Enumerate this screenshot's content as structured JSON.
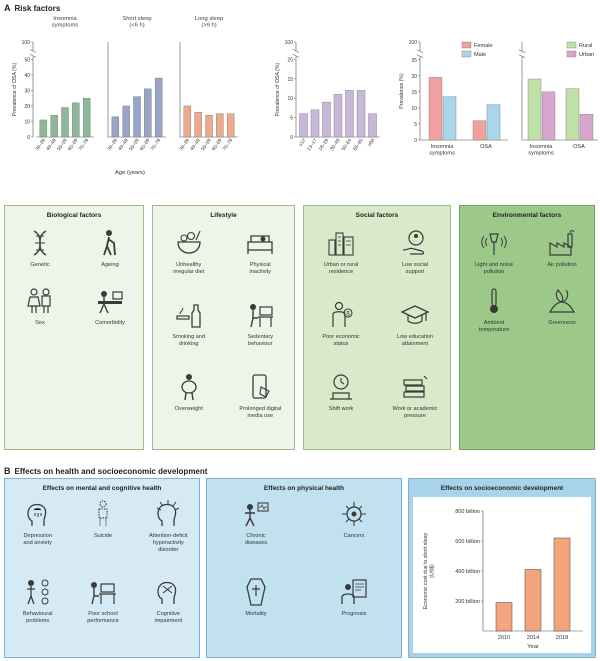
{
  "section_a": {
    "letter": "A",
    "title": "Risk factors"
  },
  "section_b": {
    "letter": "B",
    "title": "Effects on health and socioeconomic development"
  },
  "chart_data": [
    {
      "type": "bar",
      "panels": [
        {
          "label": "Insomnia\nsymptoms",
          "color": "#8fb89a",
          "categories": [
            "30–39",
            "40–49",
            "50–59",
            "60–69",
            "70–79"
          ],
          "values": [
            11,
            14,
            19,
            22,
            25
          ]
        },
        {
          "label": "Short sleep\n(<6 h)",
          "color": "#9aa3c8",
          "categories": [
            "30–39",
            "40–49",
            "50–59",
            "60–69",
            "70–79"
          ],
          "values": [
            13,
            20,
            26,
            31,
            38
          ]
        },
        {
          "label": "Long sleep\n(>9 h)",
          "color": "#f0a98a",
          "categories": [
            "30–39",
            "40–49",
            "50–59",
            "60–69",
            "70–79"
          ],
          "values": [
            20,
            16,
            14,
            15,
            15
          ]
        }
      ],
      "ylabel": "Prevalence of OSA (%)",
      "xlabel": "Age (years)",
      "ylim": [
        0,
        100
      ],
      "yticks": [
        0,
        10,
        20,
        30,
        40,
        50,
        100
      ]
    },
    {
      "type": "bar",
      "categories": [
        "≤12",
        "13–17",
        "18–29",
        "30–49",
        "50–64",
        "65–85",
        "≥86"
      ],
      "values": [
        6,
        7,
        9,
        11,
        12,
        12,
        6
      ],
      "color": "#c7b8d8",
      "ylabel": "Prevalence of OSA (%)",
      "ylim": [
        0,
        100
      ],
      "yticks": [
        0,
        5,
        10,
        15,
        20,
        100
      ]
    },
    {
      "type": "bar",
      "categories": [
        "Insomnia\nsymptoms",
        "OSA"
      ],
      "series": [
        {
          "name": "Female",
          "color": "#f0a0a0",
          "values": [
            19.5,
            6
          ]
        },
        {
          "name": "Male",
          "color": "#a9d6ea",
          "values": [
            13.5,
            11
          ]
        }
      ],
      "ylabel": "Prevalence (%)",
      "ylim": [
        0,
        100
      ],
      "yticks": [
        0,
        5,
        10,
        15,
        20,
        25,
        100
      ]
    },
    {
      "type": "bar",
      "categories": [
        "Insomnia\nsymptoms",
        "OSA"
      ],
      "series": [
        {
          "name": "Rural",
          "color": "#bfe0a6",
          "values": [
            19,
            16
          ]
        },
        {
          "name": "Urban",
          "color": "#d8a5cf",
          "values": [
            15,
            8
          ]
        }
      ],
      "ylim": [
        0,
        100
      ],
      "yticks": [
        0,
        5,
        10,
        15,
        20,
        25,
        100
      ]
    },
    {
      "type": "bar",
      "categories": [
        "2010",
        "2014",
        "2018"
      ],
      "values": [
        190,
        410,
        620
      ],
      "color": "#f4a47c",
      "ylabel": "Economic cost due to short sleep\n(US$)",
      "xlabel": "Year",
      "ylim": [
        0,
        800
      ],
      "yticks": [
        "200 billion",
        "400 billion",
        "600 billion",
        "800 billion"
      ]
    }
  ],
  "factor_panels": [
    {
      "title": "Biological factors",
      "bg": "#eef5e8",
      "border": "#9bbd86",
      "items": [
        "Genetic",
        "Ageing",
        "Sex",
        "Comorbidity"
      ],
      "icons": [
        "dna-icon",
        "ageing-person-icon",
        "sex-icon",
        "comorbidity-icon"
      ]
    },
    {
      "title": "Lifestyle",
      "bg": "#eef5e8",
      "border": "#9bbd86",
      "items": [
        "Unhealthy\nirregular diet",
        "Physical\ninactivity",
        "Smoking and\ndrinking",
        "Sedentary\nbehaviour",
        "Overweight",
        "Prolonged digital\nmedia use"
      ],
      "icons": [
        "diet-bowl-icon",
        "couch-icon",
        "cigarette-bottle-icon",
        "sedentary-desk-icon",
        "overweight-person-icon",
        "smartphone-icon"
      ]
    },
    {
      "title": "Social factors",
      "bg": "#d8eac9",
      "border": "#9bbd86",
      "items": [
        "Urban or rural\nresidence",
        "Low social\nsupport",
        "Poor economic\nstatus",
        "Low education\nattainment",
        "Shift work",
        "Work or academic\npressure"
      ],
      "icons": [
        "city-icon",
        "support-hand-icon",
        "money-person-icon",
        "graduation-cap-icon",
        "clock-person-icon",
        "stacked-books-icon"
      ]
    },
    {
      "title": "Environmental factors",
      "bg": "#9cc98a",
      "border": "#6fa35a",
      "items": [
        "Light and noise\npollution",
        "Air pollution",
        "Ambient\ntemperature",
        "Greenness"
      ],
      "icons": [
        "light-noise-icon",
        "factory-icon",
        "thermometer-icon",
        "greenness-icon"
      ]
    }
  ],
  "effect_panels": [
    {
      "title": "Effects on mental and cognitive health",
      "bg": "#d6eaf5",
      "items": [
        "Depression\nand anxiety",
        "Suicide",
        "Attention-deficit\nhyperactivity\ndisorder",
        "Behavioural\nproblems",
        "Poor school\nperformance",
        "Cognitive\nimpairment"
      ],
      "icons": [
        "depression-head-icon",
        "suicide-figure-icon",
        "adhd-head-icon",
        "behaviour-icon",
        "school-desk-icon",
        "cognitive-head-icon"
      ]
    },
    {
      "title": "Effects on physical health",
      "bg": "#c2e1f0",
      "items": [
        "Chronic\ndiseases",
        "Cancers",
        "Mortality",
        "Prognosis"
      ],
      "icons": [
        "chronic-disease-icon",
        "cancer-cell-icon",
        "coffin-icon",
        "prognosis-doctor-icon"
      ]
    },
    {
      "title": "Effects on socioeconomic development",
      "bg": "#a9d3ea"
    }
  ]
}
